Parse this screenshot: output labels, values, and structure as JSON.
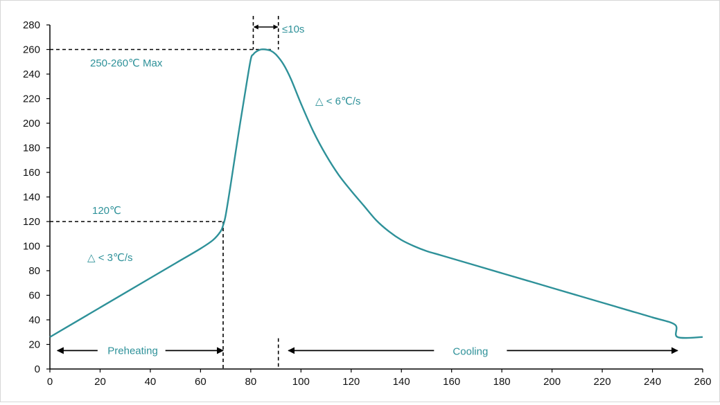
{
  "chart_data": {
    "type": "line",
    "title": "",
    "xlabel": "",
    "ylabel": "",
    "xlim": [
      0,
      260
    ],
    "ylim": [
      0,
      280
    ],
    "x_ticks": [
      "0",
      "20",
      "40",
      "60",
      "80",
      "100",
      "120",
      "140",
      "160",
      "180",
      "200",
      "220",
      "240",
      "260"
    ],
    "y_ticks": [
      "0",
      "20",
      "40",
      "60",
      "80",
      "100",
      "120",
      "140",
      "160",
      "180",
      "200",
      "220",
      "240",
      "260",
      "280"
    ],
    "grid": false,
    "legend": "none",
    "series": [
      {
        "color": "#2e9199",
        "x": [
          0,
          10,
          20,
          30,
          40,
          50,
          60,
          65,
          68,
          69,
          70,
          72,
          75,
          78,
          80,
          81,
          82,
          84,
          86,
          88,
          90,
          93,
          96,
          100,
          105,
          110,
          115,
          120,
          125,
          130,
          135,
          140,
          145,
          150,
          155,
          160,
          170,
          180,
          190,
          200,
          210,
          220,
          230,
          240,
          249,
          250,
          260
        ],
        "y": [
          26,
          38,
          50,
          62,
          74,
          86,
          98,
          105,
          112,
          117,
          125,
          150,
          190,
          228,
          252,
          256,
          258,
          260,
          260,
          259,
          256,
          248,
          236,
          216,
          193,
          174,
          158,
          145,
          133,
          121,
          112,
          105,
          100,
          96,
          93,
          90,
          84,
          78,
          72,
          66,
          60,
          54,
          48,
          42,
          36,
          26,
          26
        ]
      }
    ],
    "annotations": {
      "peak_label": "250-260℃ Max",
      "preheat_threshold_label": "120℃",
      "ramp_up_label": "△ < 3℃/s",
      "ramp_down_label": "△ < 6℃/s",
      "peak_time_label": "≤10s",
      "preheating_label": "Preheating",
      "cooling_label": "Cooling",
      "peak_temperature": 260,
      "preheat_temperature": 120,
      "preheat_end_time": 69,
      "peak_window": [
        81,
        91
      ],
      "cooling_start_time": 91,
      "preheating_span": [
        3,
        69
      ],
      "cooling_span": [
        95,
        250
      ]
    }
  },
  "colors": {
    "curve": "#2e9199",
    "annotation_text": "#2e9199",
    "axis": "#000000",
    "guide_lines": "#000000"
  }
}
